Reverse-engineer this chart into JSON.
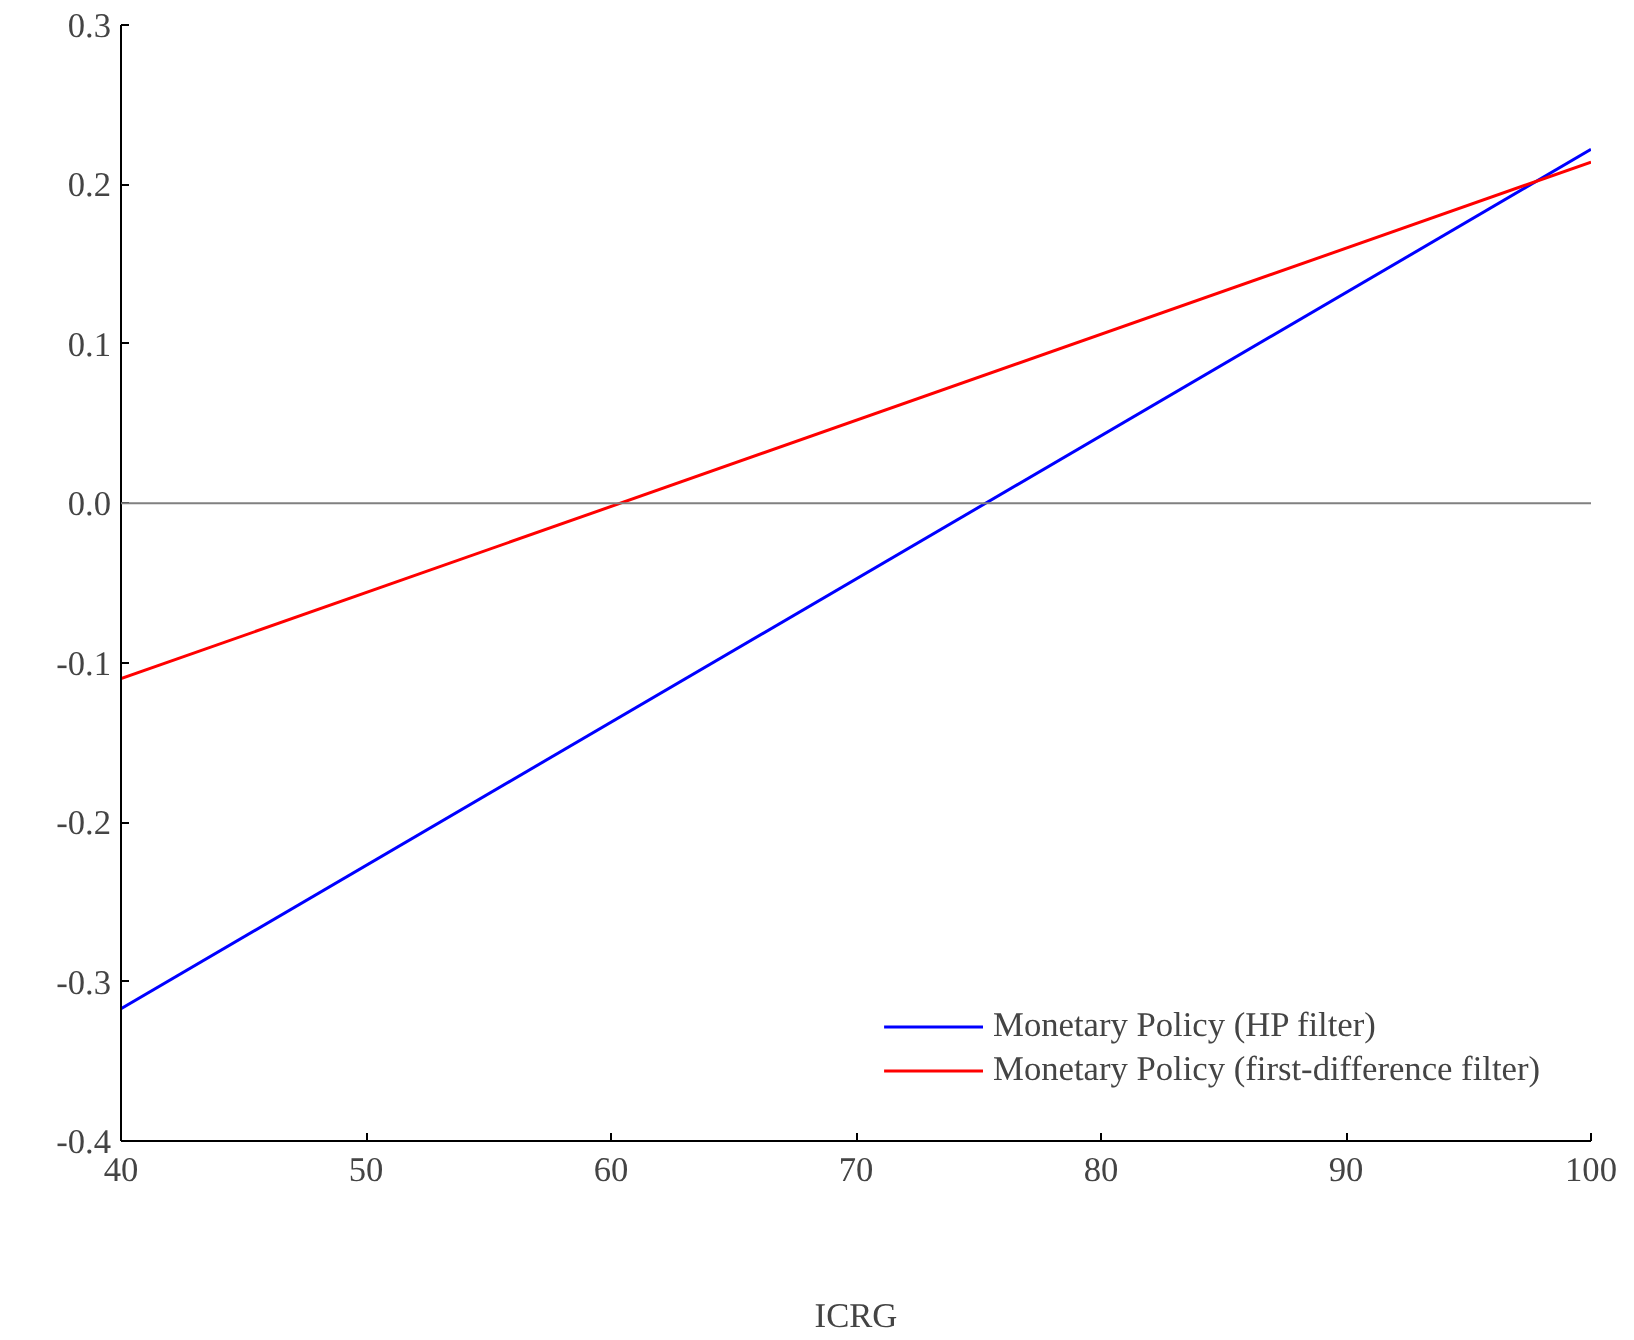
{
  "chart_data": {
    "type": "line",
    "xlabel": "ICRG",
    "x": [
      40,
      100
    ],
    "series": [
      {
        "name": "Monetary Policy (HP filter)",
        "color": "#0000ff",
        "values": [
          -0.317,
          0.222
        ]
      },
      {
        "name": "Monetary Policy (first-difference filter)",
        "color": "#ff0000",
        "values": [
          -0.11,
          0.214
        ]
      }
    ],
    "xlim": [
      40,
      100
    ],
    "xticks": [
      40,
      50,
      60,
      70,
      80,
      90,
      100
    ],
    "ylim": [
      -0.4,
      0.3
    ],
    "yticks": [
      {
        "value": -0.4,
        "label": "-0.4"
      },
      {
        "value": -0.3,
        "label": "-0.3"
      },
      {
        "value": -0.2,
        "label": "-0.2"
      },
      {
        "value": -0.1,
        "label": "-0.1"
      },
      {
        "value": 0,
        "label": "0.0"
      },
      {
        "value": 0.1,
        "label": "0.1"
      },
      {
        "value": 0.2,
        "label": "0.2"
      },
      {
        "value": 0.3,
        "label": "0.3"
      }
    ],
    "ref_lines": [
      {
        "axis": "y",
        "value": 0,
        "color": "#808080"
      }
    ],
    "legend": "bottom right",
    "grid": false,
    "line_style": "solid"
  }
}
